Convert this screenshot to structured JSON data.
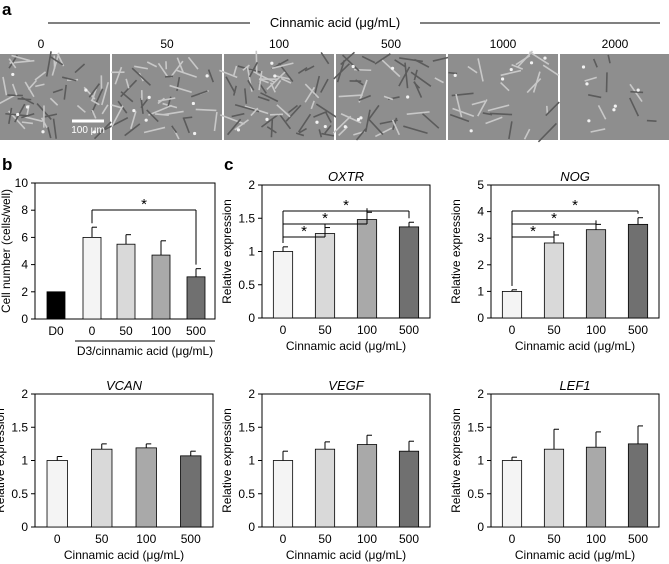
{
  "panel_a": {
    "label": "a",
    "header": "Cinnamic acid (μg/mL)",
    "concentrations": [
      "0",
      "50",
      "100",
      "500",
      "1000",
      "2000"
    ],
    "cell_density": [
      0.55,
      0.5,
      0.65,
      0.45,
      0.3,
      0.12
    ],
    "scale_bar": "100 μm"
  },
  "panel_labels": {
    "b": "b",
    "c": "c"
  },
  "colors": {
    "bar0": "#f4f4f4",
    "bar1": "#d9d9d9",
    "bar2": "#a9a9a9",
    "bar3": "#707070",
    "d0": "#000000"
  },
  "chart_data": [
    {
      "id": "cell-number",
      "type": "bar",
      "title": "",
      "categories": [
        "D0",
        "0",
        "50",
        "100",
        "500"
      ],
      "values": [
        2.0,
        6.0,
        5.5,
        4.7,
        3.1
      ],
      "errors": [
        0,
        0.75,
        0.7,
        1.05,
        0.6
      ],
      "ylim": [
        0,
        10
      ],
      "yticks": [
        "0",
        "2",
        "4",
        "6",
        "8",
        "10"
      ],
      "ylabel": "Cell number (cells/well)",
      "xlabel": "D3/cinnamic acid (μg/mL)",
      "significance": [
        {
          "from": 1,
          "to": 4,
          "label": "*"
        }
      ]
    },
    {
      "id": "oxtr",
      "type": "bar",
      "title": "OXTR",
      "categories": [
        "0",
        "50",
        "100",
        "500"
      ],
      "values": [
        1.0,
        1.27,
        1.48,
        1.37
      ],
      "errors": [
        0.07,
        0.09,
        0.11,
        0.07
      ],
      "ylim": [
        0,
        2
      ],
      "yticks": [
        "0",
        "0.5",
        "1",
        "1.5",
        "2"
      ],
      "ylabel": "Relative expression",
      "xlabel": "Cinnamic acid (μg/mL)",
      "significance": [
        {
          "from": 0,
          "to": 1,
          "label": "*"
        },
        {
          "from": 0,
          "to": 2,
          "label": "*"
        },
        {
          "from": 0,
          "to": 3,
          "label": "*"
        }
      ]
    },
    {
      "id": "nog",
      "type": "bar",
      "title": "NOG",
      "categories": [
        "0",
        "50",
        "100",
        "500"
      ],
      "values": [
        1.0,
        2.82,
        3.32,
        3.52
      ],
      "errors": [
        0.06,
        0.3,
        0.2,
        0.25
      ],
      "ylim": [
        0,
        5
      ],
      "yticks": [
        "0",
        "1",
        "2",
        "3",
        "4",
        "5"
      ],
      "ylabel": "Relative expression",
      "xlabel": "Cinnamic acid (μg/mL)",
      "significance": [
        {
          "from": 0,
          "to": 1,
          "label": "*"
        },
        {
          "from": 0,
          "to": 2,
          "label": "*"
        },
        {
          "from": 0,
          "to": 3,
          "label": "*"
        }
      ]
    },
    {
      "id": "vcan",
      "type": "bar",
      "title": "VCAN",
      "categories": [
        "0",
        "50",
        "100",
        "500"
      ],
      "values": [
        1.0,
        1.17,
        1.19,
        1.07
      ],
      "errors": [
        0.06,
        0.08,
        0.06,
        0.07
      ],
      "ylim": [
        0,
        2
      ],
      "yticks": [
        "0",
        "0.5",
        "1",
        "1.5",
        "2"
      ],
      "ylabel": "Relative expression",
      "xlabel": "Cinnamic acid (μg/mL)",
      "significance": []
    },
    {
      "id": "vegf",
      "type": "bar",
      "title": "VEGF",
      "categories": [
        "0",
        "50",
        "100",
        "500"
      ],
      "values": [
        1.0,
        1.17,
        1.24,
        1.14
      ],
      "errors": [
        0.14,
        0.11,
        0.14,
        0.15
      ],
      "ylim": [
        0,
        2
      ],
      "yticks": [
        "0",
        "0.5",
        "1",
        "1.5",
        "2"
      ],
      "ylabel": "Relative expression",
      "xlabel": "Cinnamic acid (μg/mL)",
      "significance": []
    },
    {
      "id": "lef1",
      "type": "bar",
      "title": "LEF1",
      "categories": [
        "0",
        "50",
        "100",
        "500"
      ],
      "values": [
        1.0,
        1.17,
        1.2,
        1.25
      ],
      "errors": [
        0.05,
        0.3,
        0.23,
        0.27
      ],
      "ylim": [
        0,
        2
      ],
      "yticks": [
        "0",
        "0.5",
        "1",
        "1.5",
        "2"
      ],
      "ylabel": "Relative expression",
      "xlabel": "Cinnamic acid (μg/mL)",
      "significance": []
    }
  ]
}
